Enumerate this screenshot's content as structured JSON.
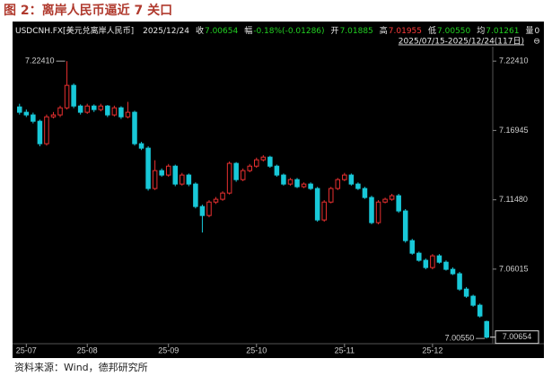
{
  "title": "图 2：离岸人民币逼近 7 关口",
  "source": "资料来源：Wind，德邦研究所",
  "chart_data": {
    "type": "candlestick",
    "header": {
      "symbol": "USDCNH.FX[美元兑离岸人民币]",
      "date": "2025/12/24",
      "fields": [
        {
          "label": "收",
          "value": "7.00654",
          "color": "#22d022"
        },
        {
          "label": "幅",
          "value": "-0.18%(-0.01286)",
          "color": "#22d022"
        },
        {
          "label": "开",
          "value": "7.01885",
          "color": "#22d022"
        },
        {
          "label": "高",
          "value": "7.01955",
          "color": "#ff3b3b"
        },
        {
          "label": "低",
          "value": "7.00550",
          "color": "#22d022"
        },
        {
          "label": "均",
          "value": "7.01261",
          "color": "#22d022"
        },
        {
          "label": "量",
          "value": "0",
          "color": "#e8e8e8"
        }
      ],
      "range": "2025/07/15-2025/12/24(117日)"
    },
    "categories": [
      null,
      "25-07",
      null,
      null,
      null,
      null,
      null,
      null,
      null,
      null,
      "25-08",
      null,
      null,
      null,
      null,
      null,
      null,
      null,
      null,
      null,
      null,
      null,
      "25-09",
      null,
      null,
      null,
      null,
      null,
      null,
      null,
      null,
      null,
      null,
      null,
      null,
      "25-10",
      null,
      null,
      null,
      null,
      null,
      null,
      null,
      null,
      null,
      null,
      null,
      null,
      "25-11",
      null,
      null,
      null,
      null,
      null,
      null,
      null,
      null,
      null,
      null,
      null,
      null,
      "25-12",
      null,
      null,
      null,
      null,
      null,
      null,
      null,
      null
    ],
    "ohlc": [
      [
        7.188,
        7.1905,
        7.182,
        7.1838
      ],
      [
        7.1838,
        7.186,
        7.18,
        7.1817
      ],
      [
        7.1817,
        7.1835,
        7.175,
        7.1767
      ],
      [
        7.1767,
        7.178,
        7.157,
        7.159
      ],
      [
        7.159,
        7.182,
        7.1575,
        7.1802
      ],
      [
        7.1802,
        7.184,
        7.179,
        7.1817
      ],
      [
        7.1817,
        7.189,
        7.18,
        7.1873
      ],
      [
        7.1873,
        7.2241,
        7.186,
        7.205
      ],
      [
        7.205,
        7.2065,
        7.187,
        7.1887
      ],
      [
        7.1887,
        7.19,
        7.182,
        7.1838
      ],
      [
        7.1838,
        7.1905,
        7.1825,
        7.1887
      ],
      [
        7.1887,
        7.19,
        7.184,
        7.1859
      ],
      [
        7.1859,
        7.1905,
        7.1845,
        7.1887
      ],
      [
        7.1887,
        7.1895,
        7.18,
        7.1817
      ],
      [
        7.1817,
        7.189,
        7.1805,
        7.1873
      ],
      [
        7.1873,
        7.1885,
        7.1785,
        7.1802
      ],
      [
        7.1802,
        7.192,
        7.179,
        7.1838
      ],
      [
        7.1838,
        7.185,
        7.1575,
        7.159
      ],
      [
        7.159,
        7.1605,
        7.154,
        7.1555
      ],
      [
        7.1555,
        7.157,
        7.122,
        7.1237
      ],
      [
        7.1237,
        7.146,
        7.1225,
        7.1378
      ],
      [
        7.1378,
        7.1395,
        7.133,
        7.1343
      ],
      [
        7.1343,
        7.143,
        7.133,
        7.1413
      ],
      [
        7.1413,
        7.1425,
        7.1255,
        7.1272
      ],
      [
        7.1272,
        7.136,
        7.126,
        7.1343
      ],
      [
        7.1343,
        7.1355,
        7.1255,
        7.1272
      ],
      [
        7.1272,
        7.1285,
        7.108,
        7.1095
      ],
      [
        7.1095,
        7.111,
        7.089,
        7.1024
      ],
      [
        7.1024,
        7.1145,
        7.101,
        7.113
      ],
      [
        7.113,
        7.117,
        7.1115,
        7.1152
      ],
      [
        7.1152,
        7.1215,
        7.114,
        7.1201
      ],
      [
        7.1201,
        7.145,
        7.119,
        7.1435
      ],
      [
        7.1435,
        7.1445,
        7.129,
        7.1307
      ],
      [
        7.1307,
        7.1395,
        7.1295,
        7.1378
      ],
      [
        7.1378,
        7.143,
        7.1365,
        7.1413
      ],
      [
        7.1413,
        7.148,
        7.14,
        7.1463
      ],
      [
        7.1463,
        7.15,
        7.145,
        7.1484
      ],
      [
        7.1484,
        7.1495,
        7.14,
        7.1413
      ],
      [
        7.1413,
        7.1425,
        7.133,
        7.1343
      ],
      [
        7.1343,
        7.1355,
        7.126,
        7.1272
      ],
      [
        7.1272,
        7.132,
        7.126,
        7.1307
      ],
      [
        7.1307,
        7.132,
        7.124,
        7.1251
      ],
      [
        7.1251,
        7.1285,
        7.124,
        7.1272
      ],
      [
        7.1272,
        7.1285,
        7.1225,
        7.1237
      ],
      [
        7.1237,
        7.125,
        7.0975,
        7.0989
      ],
      [
        7.0989,
        7.1145,
        7.0975,
        7.113
      ],
      [
        7.113,
        7.125,
        7.112,
        7.1237
      ],
      [
        7.1237,
        7.132,
        7.1225,
        7.1307
      ],
      [
        7.1307,
        7.136,
        7.1295,
        7.1343
      ],
      [
        7.1343,
        7.1355,
        7.126,
        7.1272
      ],
      [
        7.1272,
        7.1285,
        7.1225,
        7.1237
      ],
      [
        7.1237,
        7.125,
        7.1155,
        7.1166
      ],
      [
        7.1166,
        7.118,
        7.0955,
        7.0968
      ],
      [
        7.0968,
        7.1145,
        7.0955,
        7.113
      ],
      [
        7.113,
        7.1165,
        7.112,
        7.1152
      ],
      [
        7.1152,
        7.1195,
        7.114,
        7.118
      ],
      [
        7.118,
        7.1195,
        7.1045,
        7.106
      ],
      [
        7.106,
        7.1075,
        7.081,
        7.0826
      ],
      [
        7.0826,
        7.084,
        7.0715,
        7.0727
      ],
      [
        7.0727,
        7.074,
        7.066,
        7.0671
      ],
      [
        7.0671,
        7.0685,
        7.06,
        7.0614
      ],
      [
        7.0614,
        7.072,
        7.06,
        7.0706
      ],
      [
        7.0706,
        7.072,
        7.0645,
        7.0656
      ],
      [
        7.0656,
        7.067,
        7.059,
        7.06
      ],
      [
        7.06,
        7.0615,
        7.0555,
        7.0565
      ],
      [
        7.0565,
        7.058,
        7.043,
        7.0444
      ],
      [
        7.0444,
        7.046,
        7.0375,
        7.0388
      ],
      [
        7.0388,
        7.04,
        7.0305,
        7.0317
      ],
      [
        7.0317,
        7.033,
        7.022,
        7.0232
      ],
      [
        7.01885,
        7.01955,
        7.0055,
        7.00654
      ]
    ],
    "up_color": "#e83030",
    "down_color": "#18c8d8",
    "ylim": [
      6.995,
      7.244
    ],
    "yticks": [
      {
        "value": 7.2241,
        "label": "7.22410"
      },
      {
        "value": 7.16945,
        "label": "7.16945"
      },
      {
        "value": 7.1148,
        "label": "7.11480"
      },
      {
        "value": 7.06015,
        "label": "7.06015"
      }
    ],
    "annotations": [
      {
        "value": 7.2241,
        "label": "7.22410",
        "color": "#ff3b3b"
      },
      {
        "value": 7.0055,
        "label": "7.00550",
        "color": "#22d022"
      }
    ]
  }
}
